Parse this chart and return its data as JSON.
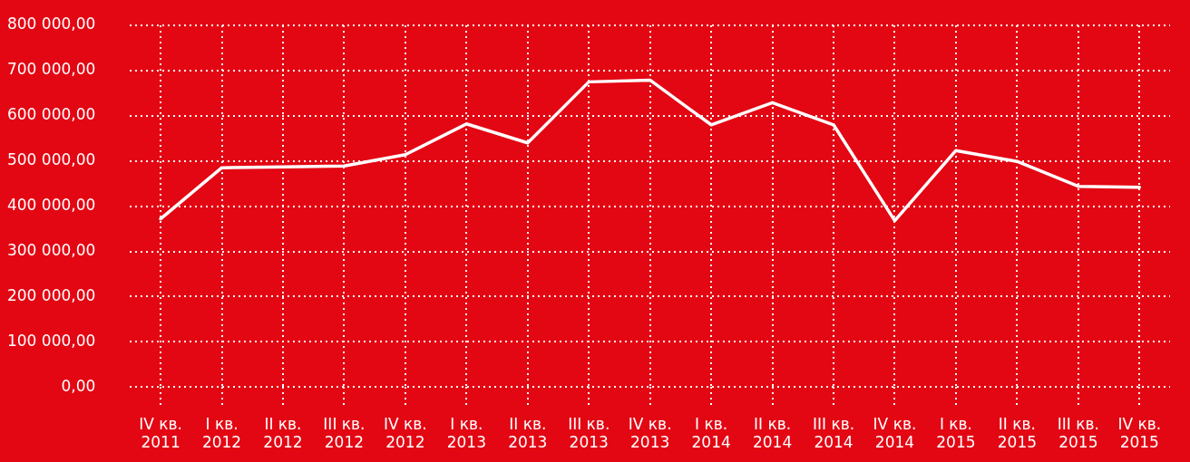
{
  "chart_data": {
    "type": "line",
    "categories": [
      "IV кв. 2011",
      "I кв. 2012",
      "II кв. 2012",
      "III кв. 2012",
      "IV кв. 2012",
      "I кв. 2013",
      "II кв. 2013",
      "III кв. 2013",
      "IV кв. 2013",
      "I кв. 2014",
      "II кв. 2014",
      "III кв. 2014",
      "IV кв. 2014",
      "I кв. 2015",
      "II кв. 2015",
      "III кв. 2015",
      "IV кв. 2015"
    ],
    "series": [
      {
        "color": "#ffffff",
        "values": [
          372000,
          485000,
          487000,
          489000,
          514000,
          582000,
          540000,
          675000,
          679000,
          580000,
          629000,
          580000,
          368000,
          523000,
          499000,
          444000,
          442000
        ]
      }
    ],
    "ylim": [
      0,
      800000
    ],
    "yticks": [
      {
        "value": 0,
        "label": "0,00"
      },
      {
        "value": 100000,
        "label": "100 000,00"
      },
      {
        "value": 200000,
        "label": "200 000,00"
      },
      {
        "value": 300000,
        "label": "300 000,00"
      },
      {
        "value": 400000,
        "label": "400 000,00"
      },
      {
        "value": 500000,
        "label": "500 000,00"
      },
      {
        "value": 600000,
        "label": "600 000,00"
      },
      {
        "value": 700000,
        "label": "700 000,00"
      },
      {
        "value": 800000,
        "label": "800 000,00"
      }
    ],
    "grid": true,
    "legend": false,
    "marker": "none",
    "line_style": "solid"
  }
}
